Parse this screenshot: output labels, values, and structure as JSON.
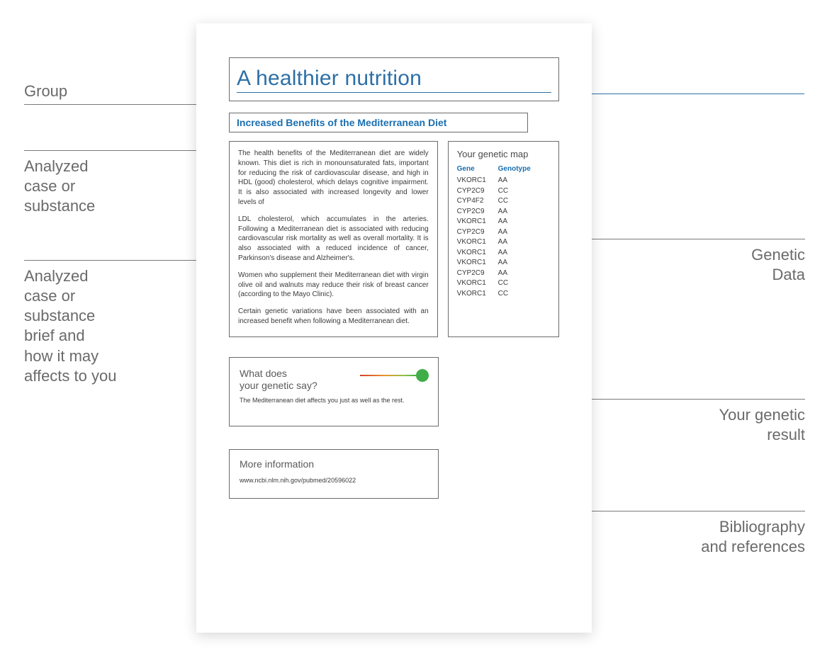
{
  "colors": {
    "heading_blue": "#2d6fa6",
    "subtitle_blue": "#1a6fb0",
    "body_text": "#3a3a3a",
    "label_grey": "#6a6a6a",
    "box_border": "#6b6b6b",
    "leader_grey": "#7a7a7a",
    "gauge_gradient": [
      "#d73c2c",
      "#e79a2b",
      "#8fc24a",
      "#3fae49"
    ],
    "gauge_dot": "#3fae49",
    "page_bg": "#ffffff"
  },
  "group": {
    "title": "A healthier nutrition"
  },
  "subtitle": "Increased Benefits of the Mediterranean Diet",
  "description": {
    "p1": "The health benefits of the Mediterranean diet are widely known. This diet is rich in monounsaturated fats, important for reducing the risk of cardiovascular disease, and high in HDL (good) cholesterol, which delays cognitive impairment. It is also associated with increased longevity and lower levels of",
    "p2": "LDL cholesterol, which accumulates in the arteries. Following a Mediterranean diet is associated with reducing cardiovascular risk mortality as well as overall mortality. It is also associated with a reduced incidence of cancer, Parkinson's disease and Alzheimer's.",
    "p3": "Women who supplement their Mediterranean diet with virgin olive oil and walnuts may reduce their risk of breast cancer (according to the Mayo Clinic).",
    "p4": "Certain genetic variations have been associated with an increased benefit when following a Mediterranean diet."
  },
  "genetic_map": {
    "title": "Your genetic map",
    "columns": [
      "Gene",
      "Genotype"
    ],
    "rows": [
      [
        "VKORC1",
        "AA"
      ],
      [
        "CYP2C9",
        "CC"
      ],
      [
        "CYP4F2",
        "CC"
      ],
      [
        "CYP2C9",
        "AA"
      ],
      [
        "VKORC1",
        "AA"
      ],
      [
        "CYP2C9",
        "AA"
      ],
      [
        "VKORC1",
        "AA"
      ],
      [
        "VKORC1",
        "AA"
      ],
      [
        "VKORC1",
        "AA"
      ],
      [
        "CYP2C9",
        "AA"
      ],
      [
        "VKORC1",
        "CC"
      ],
      [
        "VKORC1",
        "CC"
      ]
    ]
  },
  "result": {
    "question_l1": "What does",
    "question_l2": "your genetic say?",
    "answer": "The Mediterranean diet affects you just as well as the rest.",
    "gauge": {
      "position_pct": 92,
      "dot_color": "#3fae49"
    }
  },
  "more_info": {
    "title": "More information",
    "link": "www.ncbi.nlm.nih.gov/pubmed/20596022"
  },
  "callouts": {
    "left": {
      "group": "Group",
      "case": "Analyzed\ncase or\nsubstance",
      "brief": "Analyzed\ncase or\nsubstance\nbrief and\nhow it may\naffects to you"
    },
    "right": {
      "genetic_data": "Genetic\nData",
      "your_result": "Your genetic\nresult",
      "bibliography": "Bibliography\nand references"
    }
  }
}
